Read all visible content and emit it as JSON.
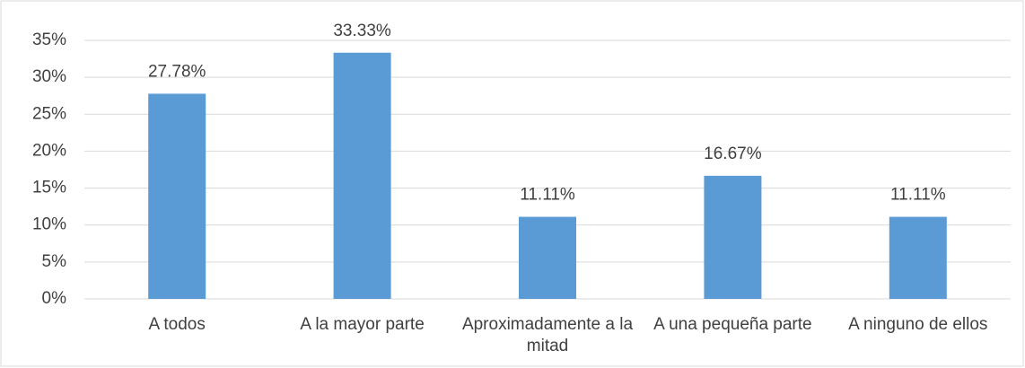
{
  "chart_data": {
    "type": "bar",
    "categories": [
      "A todos",
      "A la mayor parte",
      "Aproximadamente a la mitad",
      "A una pequeña parte",
      "A ninguno de ellos"
    ],
    "values": [
      27.78,
      33.33,
      11.11,
      16.67,
      11.11
    ],
    "value_labels": [
      "27.78%",
      "33.33%",
      "11.11%",
      "16.67%",
      "11.11%"
    ],
    "color": "#5b9bd5",
    "ylim": [
      0,
      35
    ],
    "yticks": [
      {
        "value": 0,
        "label": "0%"
      },
      {
        "value": 5,
        "label": "5%"
      },
      {
        "value": 10,
        "label": "10%"
      },
      {
        "value": 15,
        "label": "15%"
      },
      {
        "value": 20,
        "label": "20%"
      },
      {
        "value": 25,
        "label": "25%"
      },
      {
        "value": 30,
        "label": "30%"
      },
      {
        "value": 35,
        "label": "35%"
      }
    ],
    "grid": true
  }
}
